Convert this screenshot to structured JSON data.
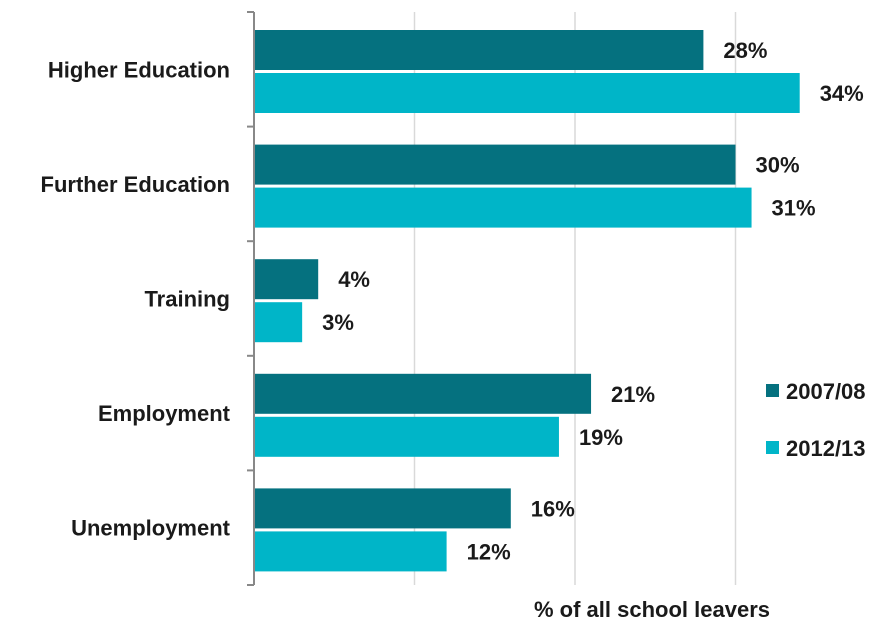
{
  "chart_data": {
    "type": "bar",
    "orientation": "horizontal",
    "categories": [
      "Higher Education",
      "Further Education",
      "Training",
      "Employment",
      "Unemployment"
    ],
    "series": [
      {
        "name": "2007/08",
        "values": [
          28,
          30,
          4,
          21,
          16
        ],
        "labels": [
          "28%",
          "30%",
          "4%",
          "21%",
          "16%"
        ],
        "color": "#05717f"
      },
      {
        "name": "2012/13",
        "values": [
          34,
          31,
          3,
          19,
          12
        ],
        "labels": [
          "34%",
          "31%",
          "3%",
          "19%",
          "12%"
        ],
        "color": "#00b5c8"
      }
    ],
    "xlabel": "% of all school leavers",
    "xlim": [
      0,
      40
    ],
    "grid": "vertical",
    "legend": "right"
  }
}
